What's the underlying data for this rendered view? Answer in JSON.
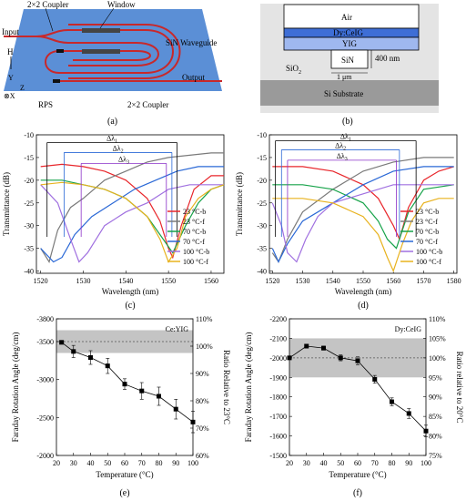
{
  "panel_a": {
    "caption": "(a)",
    "labels": {
      "coupler_top": "2×2 Coupler",
      "window": "Window",
      "input": "Input",
      "h": "H",
      "waveguide": "SiN Waveguide",
      "y": "Y",
      "z": "Z",
      "x": "⊗X",
      "output": "Output",
      "rps": "RPS",
      "coupler_bottom": "2×2 Coupler"
    }
  },
  "panel_b": {
    "caption": "(b)",
    "labels": {
      "air": "Air",
      "dycig": "Dy:CeIG",
      "yig": "YIG",
      "sio2": "SiO",
      "sio2_sub": "2",
      "sin": "SiN",
      "thickness": "400 nm",
      "width": "1 μm",
      "substrate": "Si Substrate"
    }
  },
  "panel_c": {
    "caption": "(c)"
  },
  "panel_d": {
    "caption": "(d)"
  },
  "panel_e": {
    "caption": "(e)"
  },
  "panel_f": {
    "caption": "(f)"
  },
  "colors": {
    "c23b": "#e8262b",
    "c23f": "#7a7a7a",
    "c70b": "#17a34a",
    "c70f": "#2a68d6",
    "c100b": "#a070e0",
    "c100f": "#e8b21e",
    "dl1": "#000000",
    "dl2": "#2a68d6",
    "dl3": "#8a30c8",
    "chip": "#5b8fd6",
    "guide": "#c8282a"
  },
  "chart_data": [
    {
      "id": "c",
      "type": "line",
      "xlabel": "Wavelength (nm)",
      "ylabel": "Transmittance (dB)",
      "xlim": [
        1519,
        1563
      ],
      "ylim": [
        -40.5,
        -10
      ],
      "xticks": [
        1520,
        1530,
        1540,
        1550,
        1560
      ],
      "yticks": [
        -10,
        -15,
        -20,
        -25,
        -30,
        -35,
        -40
      ],
      "legend": "lower-right",
      "legend_labels": [
        "23 °C-b",
        "23 °C-f",
        "70 °C-b",
        "70 °C-f",
        "100 °C-b",
        "100 °C-f"
      ],
      "annotations": [
        "Δλ",
        "Δλ",
        "Δλ"
      ],
      "annotation_subs": [
        "1",
        "2",
        "3"
      ],
      "deltas": [
        {
          "x1": 1521.5,
          "x2": 1552.0,
          "y": -11.7
        },
        {
          "x1": 1525.5,
          "x2": 1550.8,
          "y": -13.9
        },
        {
          "x1": 1529.5,
          "x2": 1549.5,
          "y": -16.3
        }
      ],
      "series": [
        {
          "name": "23 °C-b",
          "x": [
            1520,
            1525,
            1530,
            1535,
            1540,
            1545,
            1548,
            1550,
            1551,
            1553,
            1556,
            1560,
            1563
          ],
          "y": [
            -17,
            -16.5,
            -17,
            -18,
            -20,
            -24,
            -29,
            -35,
            -37,
            -30,
            -22,
            -19,
            -19
          ]
        },
        {
          "name": "23 °C-f",
          "x": [
            1520,
            1522,
            1524,
            1527,
            1530,
            1535,
            1540,
            1545,
            1550,
            1555,
            1560,
            1563
          ],
          "y": [
            -35,
            -38,
            -31,
            -26,
            -24,
            -20,
            -18,
            -16,
            -15,
            -14.5,
            -14,
            -14
          ]
        },
        {
          "name": "70 °C-b",
          "x": [
            1520,
            1525,
            1530,
            1535,
            1540,
            1545,
            1548,
            1551,
            1554,
            1557,
            1560,
            1563
          ],
          "y": [
            -20,
            -20,
            -21,
            -22,
            -24,
            -28,
            -32,
            -36,
            -30,
            -25,
            -22,
            -21
          ]
        },
        {
          "name": "70 °C-f",
          "x": [
            1520,
            1523,
            1525,
            1528,
            1532,
            1537,
            1542,
            1547,
            1552,
            1557,
            1563
          ],
          "y": [
            -35,
            -38,
            -37,
            -32,
            -28,
            -25,
            -22,
            -20,
            -18,
            -17,
            -17
          ]
        },
        {
          "name": "100 °C-b",
          "x": [
            1520,
            1524,
            1527,
            1529,
            1531,
            1535,
            1540,
            1545,
            1550,
            1555,
            1560,
            1563
          ],
          "y": [
            -21,
            -25,
            -33,
            -38,
            -36,
            -30,
            -27,
            -25,
            -22,
            -21,
            -21,
            -21
          ]
        },
        {
          "name": "100 °C-f",
          "x": [
            1520,
            1525,
            1530,
            1535,
            1540,
            1545,
            1548,
            1550,
            1552,
            1554,
            1557,
            1560,
            1563
          ],
          "y": [
            -21,
            -20.5,
            -21,
            -22,
            -24,
            -28,
            -33,
            -38,
            -35,
            -28,
            -24,
            -22,
            -21
          ]
        }
      ]
    },
    {
      "id": "d",
      "type": "line",
      "xlabel": "Wavelength (nm)",
      "ylabel": "Transmittance (dB)",
      "xlim": [
        1519,
        1581
      ],
      "ylim": [
        -40.5,
        -10
      ],
      "xticks": [
        1520,
        1530,
        1540,
        1550,
        1560,
        1570,
        1580
      ],
      "yticks": [
        -10,
        -15,
        -20,
        -25,
        -30,
        -35,
        -40
      ],
      "legend": "lower-right",
      "legend_labels": [
        "23 °C-b",
        "23 °C-f",
        "70 °C-b",
        "70 °C-f",
        "100 °C-b",
        "100 °C-f"
      ],
      "annotations": [
        "Δλ",
        "Δλ",
        "Δλ"
      ],
      "annotation_subs": [
        "1",
        "2",
        "3"
      ],
      "deltas": [
        {
          "x1": 1521.0,
          "x2": 1567.5,
          "y": -11.3
        },
        {
          "x1": 1523.0,
          "x2": 1562.0,
          "y": -13.3
        },
        {
          "x1": 1525.0,
          "x2": 1561.0,
          "y": -15.6
        }
      ],
      "series": [
        {
          "name": "23 °C-b",
          "x": [
            1520,
            1530,
            1540,
            1550,
            1555,
            1560,
            1562,
            1565,
            1570,
            1575,
            1580
          ],
          "y": [
            -17,
            -17,
            -18,
            -21,
            -24,
            -30,
            -33,
            -26,
            -20,
            -18,
            -17
          ]
        },
        {
          "name": "23 °C-f",
          "x": [
            1520,
            1522,
            1525,
            1530,
            1540,
            1550,
            1560,
            1570,
            1580
          ],
          "y": [
            -36,
            -38,
            -33,
            -27,
            -22,
            -18,
            -16,
            -15,
            -15
          ]
        },
        {
          "name": "70 °C-b",
          "x": [
            1520,
            1530,
            1540,
            1550,
            1555,
            1558,
            1561,
            1565,
            1570,
            1580
          ],
          "y": [
            -21,
            -21,
            -22,
            -25,
            -29,
            -33,
            -35,
            -27,
            -22,
            -21
          ]
        },
        {
          "name": "70 °C-f",
          "x": [
            1520,
            1522,
            1525,
            1530,
            1540,
            1550,
            1560,
            1570,
            1580
          ],
          "y": [
            -35,
            -38,
            -34,
            -29,
            -25,
            -21,
            -18,
            -17,
            -17
          ]
        },
        {
          "name": "100 °C-b",
          "x": [
            1520,
            1523,
            1525,
            1528,
            1531,
            1535,
            1540,
            1550,
            1560,
            1570,
            1580
          ],
          "y": [
            -25,
            -30,
            -36,
            -38,
            -33,
            -28,
            -25,
            -23,
            -21,
            -21,
            -21
          ]
        },
        {
          "name": "100 °C-f",
          "x": [
            1520,
            1530,
            1540,
            1550,
            1555,
            1558,
            1560,
            1563,
            1566,
            1570,
            1575,
            1580
          ],
          "y": [
            -24,
            -24,
            -25,
            -28,
            -32,
            -37,
            -40,
            -34,
            -29,
            -25,
            -24,
            -24
          ]
        }
      ]
    },
    {
      "id": "e",
      "type": "scatter",
      "legend_label": "Ce:YIG",
      "xlabel": "Temperature (°C)",
      "ylabel": "Faraday Rotation Angle (deg/cm)",
      "ylabel2": "Ratio Relative to 23°C",
      "xlim": [
        20,
        100
      ],
      "ylim": [
        -3800,
        -2000
      ],
      "xticks": [
        20,
        30,
        40,
        50,
        60,
        70,
        80,
        90,
        100
      ],
      "yticks": [
        -3800,
        -3500,
        -3000,
        -2500,
        -2000
      ],
      "y2ticks": [
        "110%",
        "100%",
        "90%",
        "80%",
        "70%",
        "60%"
      ],
      "y2values": [
        110,
        100,
        90,
        80,
        70,
        60
      ],
      "y2_ref": -3500,
      "band": [
        -3650,
        -3350
      ],
      "x": [
        23,
        30,
        40,
        50,
        60,
        70,
        80,
        90,
        100
      ],
      "y": [
        -3490,
        -3370,
        -3290,
        -3180,
        -2940,
        -2850,
        -2780,
        -2610,
        -2440
      ],
      "err": [
        20,
        80,
        90,
        100,
        70,
        110,
        120,
        130,
        140
      ]
    },
    {
      "id": "f",
      "type": "scatter",
      "legend_label": "Dy:CeIG",
      "xlabel": "Temperature (°C)",
      "ylabel": "Faraday Rotation Angle (deg/cm)",
      "ylabel2": "Ratio relative to 20°C",
      "xlim": [
        20,
        100
      ],
      "ylim": [
        -2200,
        -1500
      ],
      "xticks": [
        20,
        30,
        40,
        50,
        60,
        70,
        80,
        90,
        100
      ],
      "yticks": [
        -2200,
        -2100,
        -2000,
        -1900,
        -1800,
        -1700,
        -1600,
        -1500
      ],
      "y2ticks": [
        "110%",
        "105%",
        "100%",
        "95%",
        "90%",
        "85%",
        "80%",
        "75%"
      ],
      "y2values": [
        110,
        105,
        100,
        95,
        90,
        85,
        80,
        75
      ],
      "y2_ref": -2000,
      "band": [
        -2100,
        -1900
      ],
      "x": [
        20,
        30,
        40,
        50,
        60,
        70,
        80,
        90,
        100
      ],
      "y": [
        -2000,
        -2060,
        -2050,
        -2000,
        -1985,
        -1890,
        -1775,
        -1715,
        -1625
      ],
      "err": [
        5,
        10,
        10,
        15,
        20,
        20,
        20,
        25,
        30
      ]
    }
  ]
}
